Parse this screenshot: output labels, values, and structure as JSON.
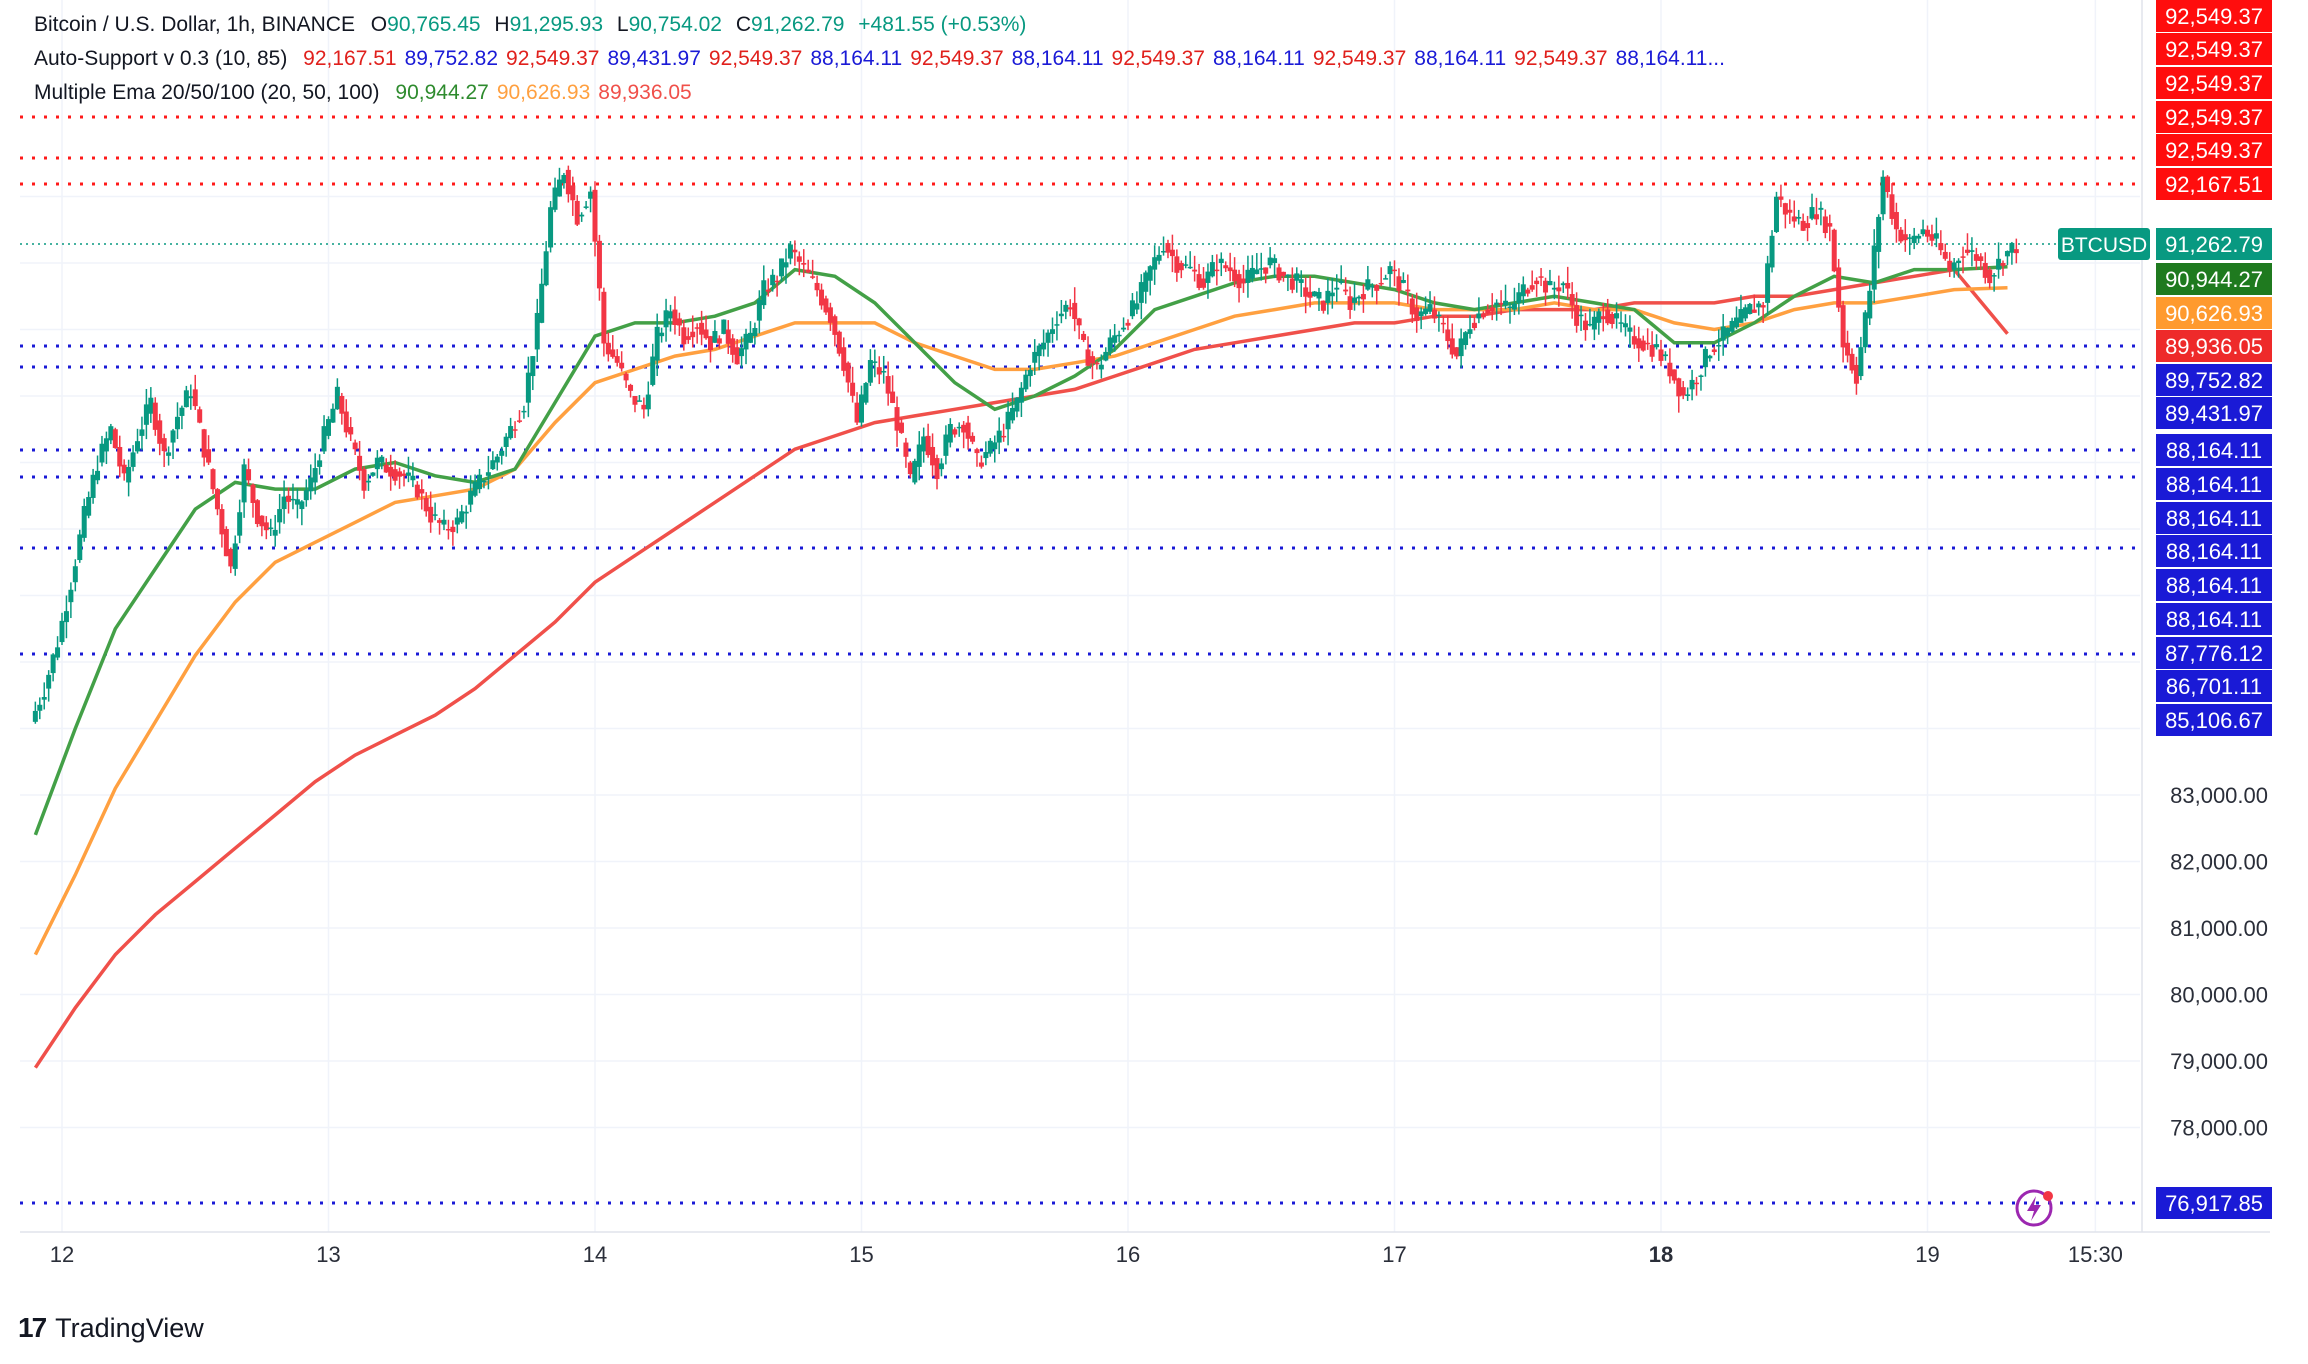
{
  "legend": {
    "symbol": "Bitcoin / U.S. Dollar, 1h, BINANCE",
    "ohlc": [
      {
        "k": "O",
        "v": "90,765.45"
      },
      {
        "k": "H",
        "v": "91,295.93"
      },
      {
        "k": "L",
        "v": "90,754.02"
      },
      {
        "k": "C",
        "v": "91,262.79"
      }
    ],
    "change": "+481.55 (+0.53%)",
    "indicator1": {
      "label": "Auto-Support v 0.3 (10, 85)",
      "values": [
        "92,167.51",
        "89,752.82",
        "92,549.37",
        "89,431.97",
        "92,549.37",
        "88,164.11",
        "92,549.37",
        "88,164.11",
        "92,549.37",
        "88,164.11",
        "92,549.37",
        "88,164.11",
        "92,549.37",
        "88,164.11..."
      ]
    },
    "indicator2": {
      "label": "Multiple Ema 20/50/100 (20, 50, 100)",
      "values": [
        "90,944.27",
        "90,626.93",
        "89,936.05"
      ]
    }
  },
  "colors": {
    "up": "#089981",
    "down": "#f23645",
    "ema20": "#43a047",
    "ema50": "#ffa040",
    "ema100": "#f0504a",
    "resistance": "#ff1a1a",
    "support": "#1a1ad6",
    "grid": "#f0f3fa",
    "text": "#131722",
    "axis": "#2a2e39"
  },
  "chart_data": {
    "type": "candlestick",
    "symbol": "BTCUSD",
    "timeframe": "1h",
    "x_labels": [
      "12",
      "13",
      "14",
      "15",
      "16",
      "17",
      "18",
      "19",
      "15:30"
    ],
    "y_ticks": [
      "83,000.00",
      "82,000.00",
      "81,000.00",
      "80,000.00",
      "79,000.00",
      "78,000.00"
    ],
    "ylim": [
      76600,
      93300
    ],
    "last_price": 91262.79,
    "resistance_levels": [
      92549.37,
      92549.37,
      92167.51
    ],
    "support_levels": [
      89752.82,
      89431.97,
      88164.11,
      88164.11,
      88164.11,
      87776.12,
      76917.85
    ],
    "price_labels": [
      {
        "text": "92,549.37",
        "kind": "resistance"
      },
      {
        "text": "92,549.37",
        "kind": "resistance"
      },
      {
        "text": "92,549.37",
        "kind": "resistance"
      },
      {
        "text": "92,549.37",
        "kind": "resistance"
      },
      {
        "text": "92,549.37",
        "kind": "resistance"
      },
      {
        "text": "92,167.51",
        "kind": "resistance"
      },
      {
        "text": "91,262.79",
        "kind": "last"
      },
      {
        "text": "90,944.27",
        "kind": "ema20"
      },
      {
        "text": "90,626.93",
        "kind": "ema50"
      },
      {
        "text": "89,936.05",
        "kind": "ema100"
      },
      {
        "text": "89,752.82",
        "kind": "support"
      },
      {
        "text": "89,431.97",
        "kind": "support"
      },
      {
        "text": "88,164.11",
        "kind": "support"
      },
      {
        "text": "88,164.11",
        "kind": "support"
      },
      {
        "text": "88,164.11",
        "kind": "support"
      },
      {
        "text": "88,164.11",
        "kind": "support"
      },
      {
        "text": "88,164.11",
        "kind": "support"
      },
      {
        "text": "88,164.11",
        "kind": "support"
      },
      {
        "text": "87,776.12",
        "kind": "support"
      },
      {
        "text": "86,701.11",
        "kind": "support"
      },
      {
        "text": "85,106.67",
        "kind": "support"
      },
      {
        "text": "76,917.85",
        "kind": "support"
      }
    ],
    "close_path": [
      [
        11.9,
        84600
      ],
      [
        11.95,
        85300
      ],
      [
        12.0,
        86200
      ],
      [
        12.05,
        87200
      ],
      [
        12.1,
        88000
      ],
      [
        12.15,
        88500
      ],
      [
        12.2,
        87700
      ],
      [
        12.25,
        88400
      ],
      [
        12.3,
        88900
      ],
      [
        12.35,
        88100
      ],
      [
        12.4,
        88700
      ],
      [
        12.45,
        89100
      ],
      [
        12.5,
        88200
      ],
      [
        12.55,
        87300
      ],
      [
        12.6,
        86400
      ],
      [
        12.65,
        87900
      ],
      [
        12.7,
        87200
      ],
      [
        12.75,
        86900
      ],
      [
        12.8,
        87500
      ],
      [
        12.85,
        87300
      ],
      [
        12.9,
        87700
      ],
      [
        12.95,
        88400
      ],
      [
        13.0,
        89000
      ],
      [
        13.05,
        88300
      ],
      [
        13.1,
        87700
      ],
      [
        13.15,
        88000
      ],
      [
        13.2,
        87900
      ],
      [
        13.25,
        87800
      ],
      [
        13.3,
        87600
      ],
      [
        13.35,
        87200
      ],
      [
        13.4,
        87000
      ],
      [
        13.45,
        87100
      ],
      [
        13.5,
        87500
      ],
      [
        13.55,
        87800
      ],
      [
        13.6,
        88100
      ],
      [
        13.65,
        88500
      ],
      [
        13.7,
        88900
      ],
      [
        13.75,
        90100
      ],
      [
        13.8,
        91800
      ],
      [
        13.85,
        92400
      ],
      [
        13.9,
        91700
      ],
      [
        13.95,
        92100
      ],
      [
        14.0,
        89800
      ],
      [
        14.05,
        89500
      ],
      [
        14.1,
        89000
      ],
      [
        14.15,
        88800
      ],
      [
        14.2,
        89900
      ],
      [
        14.25,
        90300
      ],
      [
        14.3,
        89900
      ],
      [
        14.35,
        90100
      ],
      [
        14.4,
        89800
      ],
      [
        14.45,
        90000
      ],
      [
        14.5,
        89600
      ],
      [
        14.55,
        89900
      ],
      [
        14.6,
        90600
      ],
      [
        14.65,
        90800
      ],
      [
        14.7,
        91200
      ],
      [
        14.75,
        90900
      ],
      [
        14.8,
        90600
      ],
      [
        14.85,
        90200
      ],
      [
        14.9,
        89500
      ],
      [
        14.95,
        88600
      ],
      [
        15.0,
        89500
      ],
      [
        15.05,
        89300
      ],
      [
        15.1,
        88600
      ],
      [
        15.15,
        87700
      ],
      [
        15.2,
        88400
      ],
      [
        15.25,
        87900
      ],
      [
        15.3,
        88500
      ],
      [
        15.35,
        88600
      ],
      [
        15.4,
        88000
      ],
      [
        15.45,
        88200
      ],
      [
        15.5,
        88500
      ],
      [
        15.55,
        88900
      ],
      [
        15.6,
        89500
      ],
      [
        15.65,
        89800
      ],
      [
        15.7,
        90200
      ],
      [
        15.75,
        90400
      ],
      [
        15.8,
        89700
      ],
      [
        15.85,
        89400
      ],
      [
        15.9,
        89800
      ],
      [
        15.95,
        90100
      ],
      [
        16.0,
        90400
      ],
      [
        16.05,
        90900
      ],
      [
        16.1,
        91300
      ],
      [
        16.15,
        91000
      ],
      [
        16.2,
        90900
      ],
      [
        16.25,
        90700
      ],
      [
        16.3,
        91000
      ],
      [
        16.35,
        90900
      ],
      [
        16.4,
        90700
      ],
      [
        16.45,
        90900
      ],
      [
        16.5,
        91000
      ],
      [
        16.55,
        90800
      ],
      [
        16.6,
        90700
      ],
      [
        16.65,
        90500
      ],
      [
        16.7,
        90400
      ],
      [
        16.75,
        90700
      ],
      [
        16.8,
        90400
      ],
      [
        16.85,
        90600
      ],
      [
        16.9,
        90700
      ],
      [
        16.95,
        90900
      ],
      [
        17.0,
        90600
      ],
      [
        17.05,
        90200
      ],
      [
        17.1,
        90300
      ],
      [
        17.15,
        90000
      ],
      [
        17.2,
        89600
      ],
      [
        17.25,
        90100
      ],
      [
        17.3,
        90300
      ],
      [
        17.35,
        90400
      ],
      [
        17.4,
        90300
      ],
      [
        17.45,
        90600
      ],
      [
        17.5,
        90800
      ],
      [
        17.55,
        90600
      ],
      [
        17.6,
        90700
      ],
      [
        17.65,
        90200
      ],
      [
        17.7,
        90000
      ],
      [
        17.75,
        90300
      ],
      [
        17.8,
        90100
      ],
      [
        17.85,
        89900
      ],
      [
        17.9,
        89800
      ],
      [
        17.95,
        89700
      ],
      [
        18.0,
        89400
      ],
      [
        18.05,
        89000
      ],
      [
        18.1,
        89300
      ],
      [
        18.15,
        89700
      ],
      [
        18.2,
        89900
      ],
      [
        18.25,
        90100
      ],
      [
        18.3,
        90300
      ],
      [
        18.35,
        90400
      ],
      [
        18.4,
        92000
      ],
      [
        18.45,
        91700
      ],
      [
        18.5,
        91600
      ],
      [
        18.55,
        91800
      ],
      [
        18.6,
        91500
      ],
      [
        18.65,
        89800
      ],
      [
        18.7,
        89300
      ],
      [
        18.75,
        90600
      ],
      [
        18.8,
        92300
      ],
      [
        18.85,
        91500
      ],
      [
        18.9,
        91300
      ],
      [
        18.95,
        91500
      ],
      [
        19.0,
        91300
      ],
      [
        19.05,
        90900
      ],
      [
        19.1,
        91200
      ],
      [
        19.15,
        91100
      ],
      [
        19.2,
        90800
      ],
      [
        19.25,
        91100
      ],
      [
        19.3,
        91262.79
      ]
    ],
    "ema20_path": [
      [
        11.9,
        82400
      ],
      [
        12.05,
        84000
      ],
      [
        12.2,
        85500
      ],
      [
        12.35,
        86400
      ],
      [
        12.5,
        87300
      ],
      [
        12.65,
        87700
      ],
      [
        12.8,
        87600
      ],
      [
        12.95,
        87600
      ],
      [
        13.1,
        87900
      ],
      [
        13.25,
        88000
      ],
      [
        13.4,
        87800
      ],
      [
        13.55,
        87700
      ],
      [
        13.7,
        87900
      ],
      [
        13.85,
        88900
      ],
      [
        14.0,
        89900
      ],
      [
        14.15,
        90100
      ],
      [
        14.3,
        90100
      ],
      [
        14.45,
        90200
      ],
      [
        14.6,
        90400
      ],
      [
        14.75,
        90900
      ],
      [
        14.9,
        90800
      ],
      [
        15.05,
        90400
      ],
      [
        15.2,
        89800
      ],
      [
        15.35,
        89200
      ],
      [
        15.5,
        88800
      ],
      [
        15.65,
        89000
      ],
      [
        15.8,
        89300
      ],
      [
        15.95,
        89700
      ],
      [
        16.1,
        90300
      ],
      [
        16.25,
        90500
      ],
      [
        16.4,
        90700
      ],
      [
        16.55,
        90800
      ],
      [
        16.7,
        90800
      ],
      [
        16.85,
        90700
      ],
      [
        17.0,
        90600
      ],
      [
        17.15,
        90400
      ],
      [
        17.3,
        90300
      ],
      [
        17.45,
        90400
      ],
      [
        17.6,
        90500
      ],
      [
        17.75,
        90400
      ],
      [
        17.9,
        90300
      ],
      [
        18.05,
        89800
      ],
      [
        18.2,
        89800
      ],
      [
        18.35,
        90100
      ],
      [
        18.5,
        90500
      ],
      [
        18.65,
        90800
      ],
      [
        18.8,
        90700
      ],
      [
        18.95,
        90900
      ],
      [
        19.1,
        90900
      ],
      [
        19.3,
        90944.27
      ]
    ],
    "ema50_path": [
      [
        11.9,
        80600
      ],
      [
        12.05,
        81800
      ],
      [
        12.2,
        83100
      ],
      [
        12.35,
        84100
      ],
      [
        12.5,
        85100
      ],
      [
        12.65,
        85900
      ],
      [
        12.8,
        86500
      ],
      [
        12.95,
        86800
      ],
      [
        13.1,
        87100
      ],
      [
        13.25,
        87400
      ],
      [
        13.4,
        87500
      ],
      [
        13.55,
        87600
      ],
      [
        13.7,
        87900
      ],
      [
        13.85,
        88600
      ],
      [
        14.0,
        89200
      ],
      [
        14.15,
        89400
      ],
      [
        14.3,
        89600
      ],
      [
        14.45,
        89700
      ],
      [
        14.6,
        89900
      ],
      [
        14.75,
        90100
      ],
      [
        14.9,
        90100
      ],
      [
        15.05,
        90100
      ],
      [
        15.2,
        89800
      ],
      [
        15.35,
        89600
      ],
      [
        15.5,
        89400
      ],
      [
        15.65,
        89400
      ],
      [
        15.8,
        89500
      ],
      [
        15.95,
        89600
      ],
      [
        16.1,
        89800
      ],
      [
        16.25,
        90000
      ],
      [
        16.4,
        90200
      ],
      [
        16.55,
        90300
      ],
      [
        16.7,
        90400
      ],
      [
        16.85,
        90400
      ],
      [
        17.0,
        90400
      ],
      [
        17.15,
        90300
      ],
      [
        17.3,
        90300
      ],
      [
        17.45,
        90300
      ],
      [
        17.6,
        90400
      ],
      [
        17.75,
        90300
      ],
      [
        17.9,
        90300
      ],
      [
        18.05,
        90100
      ],
      [
        18.2,
        90000
      ],
      [
        18.35,
        90100
      ],
      [
        18.5,
        90300
      ],
      [
        18.65,
        90400
      ],
      [
        18.8,
        90400
      ],
      [
        18.95,
        90500
      ],
      [
        19.1,
        90600
      ],
      [
        19.3,
        90626.93
      ]
    ],
    "ema100_path": [
      [
        11.9,
        78900
      ],
      [
        12.05,
        79800
      ],
      [
        12.2,
        80600
      ],
      [
        12.35,
        81200
      ],
      [
        12.5,
        81700
      ],
      [
        12.65,
        82200
      ],
      [
        12.8,
        82700
      ],
      [
        12.95,
        83200
      ],
      [
        13.1,
        83600
      ],
      [
        13.25,
        83900
      ],
      [
        13.4,
        84200
      ],
      [
        13.55,
        84600
      ],
      [
        13.7,
        85100
      ],
      [
        13.85,
        85600
      ],
      [
        14.0,
        86200
      ],
      [
        14.15,
        86600
      ],
      [
        14.3,
        87000
      ],
      [
        14.45,
        87400
      ],
      [
        14.6,
        87800
      ],
      [
        14.75,
        88200
      ],
      [
        14.9,
        88400
      ],
      [
        15.05,
        88600
      ],
      [
        15.2,
        88700
      ],
      [
        15.35,
        88800
      ],
      [
        15.5,
        88900
      ],
      [
        15.65,
        89000
      ],
      [
        15.8,
        89100
      ],
      [
        15.95,
        89300
      ],
      [
        16.1,
        89500
      ],
      [
        16.25,
        89700
      ],
      [
        16.4,
        89800
      ],
      [
        16.55,
        89900
      ],
      [
        16.7,
        90000
      ],
      [
        16.85,
        90100
      ],
      [
        17.0,
        90100
      ],
      [
        17.15,
        90200
      ],
      [
        17.3,
        90200
      ],
      [
        17.45,
        90300
      ],
      [
        17.6,
        90300
      ],
      [
        17.75,
        90300
      ],
      [
        17.9,
        90400
      ],
      [
        18.05,
        90400
      ],
      [
        18.2,
        90400
      ],
      [
        18.35,
        90500
      ],
      [
        18.5,
        90500
      ],
      [
        18.65,
        90600
      ],
      [
        18.8,
        90700
      ],
      [
        18.95,
        90800
      ],
      [
        19.1,
        90900
      ],
      [
        19.3,
        89936.05
      ]
    ]
  },
  "watermark": {
    "logo": "17",
    "text": "TradingView"
  },
  "replay_icon": "lightning-icon"
}
